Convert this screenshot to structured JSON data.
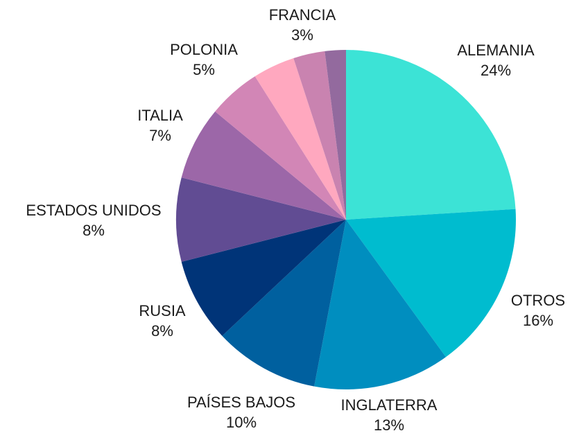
{
  "chart_data": {
    "type": "pie",
    "title": "",
    "start_angle_deg": 0,
    "direction": "clockwise",
    "slices": [
      {
        "label": "ALEMANIA",
        "value": 24,
        "pct_label": "24%",
        "color": "#3ce3d6"
      },
      {
        "label": "OTROS",
        "value": 16,
        "pct_label": "16%",
        "color": "#00bccf"
      },
      {
        "label": "INGLATERRA",
        "value": 13,
        "pct_label": "13%",
        "color": "#008ebf"
      },
      {
        "label": "PAÍSES BAJOS",
        "value": 10,
        "pct_label": "10%",
        "color": "#00609f"
      },
      {
        "label": "RUSIA",
        "value": 8,
        "pct_label": "8%",
        "color": "#003478"
      },
      {
        "label": "ESTADOS UNIDOS",
        "value": 8,
        "pct_label": "8%",
        "color": "#614c93"
      },
      {
        "label": "ITALIA",
        "value": 7,
        "pct_label": "7%",
        "color": "#9c67a8"
      },
      {
        "label": "POLONIA",
        "value": 5,
        "pct_label": "5%",
        "color": "#d286b6"
      },
      {
        "label": "",
        "value": 4,
        "pct_label": "",
        "color": "#ffa8bf"
      },
      {
        "label": "FRANCIA",
        "value": 3,
        "pct_label": "3%",
        "color": "#c983b0"
      },
      {
        "label": "",
        "value": 2,
        "pct_label": "",
        "color": "#936a9e"
      }
    ],
    "legend": "none",
    "labels_position": "outside"
  }
}
